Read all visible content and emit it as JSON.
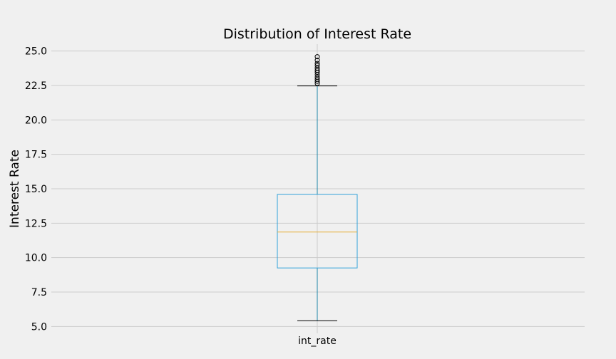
{
  "chart_data": {
    "type": "box",
    "title": "Distribution of Interest Rate",
    "xlabel": "",
    "ylabel": "Interest Rate",
    "categories": [
      "int_rate"
    ],
    "ylim": [
      4.5,
      25.5
    ],
    "yticks": [
      5.0,
      7.5,
      10.0,
      12.5,
      15.0,
      17.5,
      20.0,
      22.5,
      25.0
    ],
    "ytick_labels": [
      "5.0",
      "7.5",
      "10.0",
      "12.5",
      "15.0",
      "17.5",
      "20.0",
      "22.5",
      "25.0"
    ],
    "grid": true,
    "legend": "none",
    "box": {
      "whisker_low": 5.42,
      "q1": 9.25,
      "median": 11.86,
      "q3": 14.59,
      "whisker_high": 22.47,
      "outliers": [
        22.65,
        22.8,
        22.95,
        23.1,
        23.28,
        23.45,
        23.6,
        23.76,
        23.95,
        24.1,
        24.33,
        24.59
      ]
    },
    "colors": {
      "box": "#30a2da",
      "whisker": "#1f86a8",
      "median": "#e5ae38",
      "cap": "#000000",
      "grid": "#cbcbcb",
      "background": "#f0f0f0"
    }
  }
}
